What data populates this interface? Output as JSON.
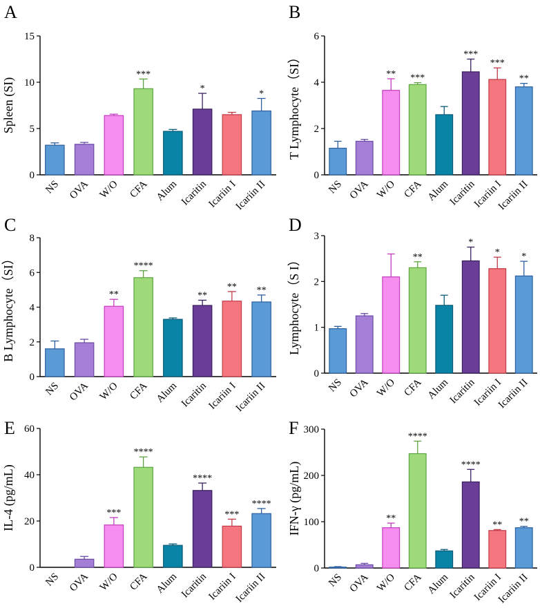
{
  "figure": {
    "categories": [
      "NS",
      "OVA",
      "W/O",
      "CFA",
      "Alum",
      "Icaritin",
      "Icariin I",
      "Icariin II"
    ],
    "colors": {
      "fills": [
        "#5b9bd5",
        "#a57fd6",
        "#f68ef0",
        "#9ed97a",
        "#0a84a6",
        "#6a3d96",
        "#f5767e",
        "#5b9bd5"
      ],
      "strokes": [
        "#2c5fa0",
        "#6a4aa6",
        "#c23bbd",
        "#5ca53f",
        "#0b5b78",
        "#3a1f5e",
        "#c23b48",
        "#2c5fa0"
      ],
      "axis": "#000000"
    }
  },
  "chart_data": [
    {
      "panel": "A",
      "type": "bar",
      "title": "",
      "xlabel": "",
      "ylabel": "Spleen (SI)",
      "ylim": [
        0,
        15
      ],
      "yticks": [
        "0",
        "5",
        "10",
        "15"
      ],
      "categories": [
        "NS",
        "OVA",
        "W/O",
        "CFA",
        "Alum",
        "Icaritin",
        "Icariin I",
        "Icariin II"
      ],
      "values": [
        3.2,
        3.3,
        6.4,
        9.3,
        4.7,
        7.1,
        6.5,
        6.9
      ],
      "errors": [
        0.25,
        0.2,
        0.15,
        1.05,
        0.2,
        1.7,
        0.25,
        1.35
      ],
      "significance": [
        "",
        "",
        "",
        "***",
        "",
        "*",
        "",
        "*"
      ]
    },
    {
      "panel": "B",
      "type": "bar",
      "title": "",
      "xlabel": "",
      "ylabel": "T Lymphocyte（SI）",
      "ylim": [
        0,
        6
      ],
      "yticks": [
        "0",
        "2",
        "4",
        "6"
      ],
      "categories": [
        "NS",
        "OVA",
        "W/O",
        "CFA",
        "Alum",
        "Icaritin",
        "Icariin I",
        "Icariin II"
      ],
      "values": [
        1.15,
        1.45,
        3.65,
        3.9,
        2.6,
        4.45,
        4.12,
        3.8
      ],
      "errors": [
        0.3,
        0.08,
        0.5,
        0.08,
        0.35,
        0.55,
        0.5,
        0.15
      ],
      "significance": [
        "",
        "",
        "**",
        "***",
        "",
        "***",
        "***",
        "**"
      ]
    },
    {
      "panel": "C",
      "type": "bar",
      "title": "",
      "xlabel": "",
      "ylabel": "B Lymphocyte（SI）",
      "ylim": [
        0,
        8
      ],
      "yticks": [
        "0",
        "2",
        "4",
        "6",
        "8"
      ],
      "categories": [
        "NS",
        "OVA",
        "W/O",
        "CFA",
        "Alum",
        "Icaritin",
        "Icariin I",
        "Icariin II"
      ],
      "values": [
        1.6,
        1.95,
        4.05,
        5.7,
        3.3,
        4.1,
        4.35,
        4.3
      ],
      "errors": [
        0.45,
        0.2,
        0.4,
        0.4,
        0.08,
        0.3,
        0.55,
        0.4
      ],
      "significance": [
        "",
        "",
        "**",
        "****",
        "",
        "**",
        "**",
        "**"
      ]
    },
    {
      "panel": "D",
      "type": "bar",
      "title": "",
      "xlabel": "",
      "ylabel": "Lymphocyte（S I）",
      "ylim": [
        0,
        3
      ],
      "yticks": [
        "0",
        "1",
        "2",
        "3"
      ],
      "categories": [
        "NS",
        "OVA",
        "W/O",
        "CFA",
        "Alum",
        "Icaritin",
        "Icariin I",
        "Icariin II"
      ],
      "values": [
        0.97,
        1.25,
        2.1,
        2.3,
        1.48,
        2.45,
        2.28,
        2.12
      ],
      "errors": [
        0.05,
        0.05,
        0.5,
        0.13,
        0.22,
        0.3,
        0.25,
        0.32
      ],
      "significance": [
        "",
        "",
        "",
        "**",
        "",
        "*",
        "*",
        "*"
      ]
    },
    {
      "panel": "E",
      "type": "bar",
      "title": "",
      "xlabel": "",
      "ylabel": "IL-4 (pg/mL)",
      "ylim": [
        0,
        60
      ],
      "yticks": [
        "0",
        "20",
        "40",
        "60"
      ],
      "categories": [
        "NS",
        "OVA",
        "W/O",
        "CFA",
        "Alum",
        "Icaritin",
        "Icariin I",
        "Icariin II"
      ],
      "values": [
        0,
        3.5,
        18.3,
        43.2,
        9.5,
        33.2,
        17.8,
        23.2
      ],
      "errors": [
        0,
        1.2,
        3.2,
        4.5,
        0.6,
        3.2,
        3.0,
        2.2
      ],
      "significance": [
        "",
        "",
        "***",
        "****",
        "",
        "****",
        "***",
        "****"
      ]
    },
    {
      "panel": "F",
      "type": "bar",
      "title": "",
      "xlabel": "",
      "ylabel": "IFN-γ (pg/mL)",
      "ylim": [
        0,
        300
      ],
      "yticks": [
        "0",
        "100",
        "200",
        "300"
      ],
      "categories": [
        "NS",
        "OVA",
        "W/O",
        "CFA",
        "Alum",
        "Icaritin",
        "Icariin I",
        "Icariin II"
      ],
      "values": [
        2,
        7,
        87,
        247,
        37,
        186,
        81,
        87
      ],
      "errors": [
        1,
        3,
        10,
        27,
        3,
        27,
        2,
        3
      ],
      "significance": [
        "",
        "",
        "**",
        "****",
        "",
        "****",
        "**",
        "**"
      ]
    }
  ]
}
